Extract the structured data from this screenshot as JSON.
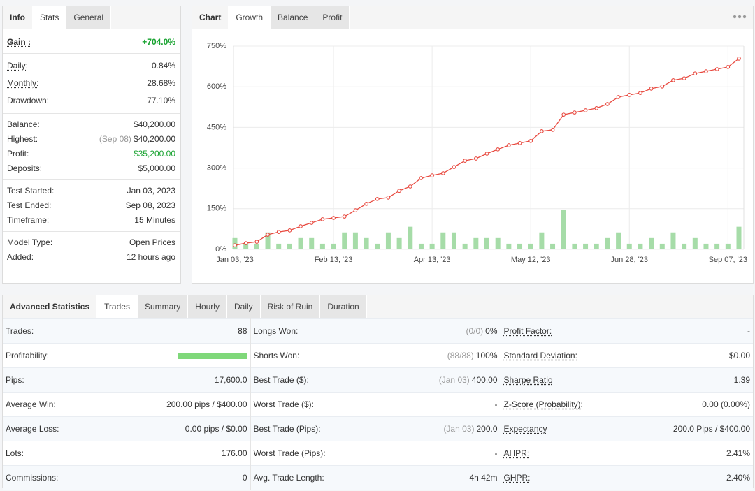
{
  "info_panel": {
    "tabs": [
      "Info",
      "Stats",
      "General"
    ],
    "groups": [
      [
        {
          "label": "Gain :",
          "value": "+704.0%"
        }
      ],
      [
        {
          "label": "Daily:",
          "value": "0.84%"
        },
        {
          "label": "Monthly:",
          "value": "28.68%"
        },
        {
          "label": "Drawdown:",
          "value": "77.10%"
        }
      ],
      [
        {
          "label": "Balance:",
          "value": "$40,200.00"
        },
        {
          "label": "Highest:",
          "note": "(Sep 08)",
          "value": "$40,200.00"
        },
        {
          "label": "Profit:",
          "value": "$35,200.00"
        },
        {
          "label": "Deposits:",
          "value": "$5,000.00"
        }
      ],
      [
        {
          "label": "Test Started:",
          "value": "Jan 03, 2023"
        },
        {
          "label": "Test Ended:",
          "value": "Sep 08, 2023"
        },
        {
          "label": "Timeframe:",
          "value": "15 Minutes"
        }
      ],
      [
        {
          "label": "Model Type:",
          "value": "Open Prices"
        },
        {
          "label": "Added:",
          "value": "12 hours ago"
        }
      ]
    ]
  },
  "chart_panel": {
    "tabs": [
      "Chart",
      "Growth",
      "Balance",
      "Profit"
    ]
  },
  "chart_data": {
    "type": "line",
    "categories": [
      "Jan 03, '23",
      null,
      null,
      null,
      null,
      null,
      null,
      null,
      null,
      "Feb 13, '23",
      null,
      null,
      null,
      null,
      null,
      null,
      null,
      null,
      "Apr 13, '23",
      null,
      null,
      null,
      null,
      null,
      null,
      null,
      null,
      "May 12, '23",
      null,
      null,
      null,
      null,
      null,
      null,
      null,
      null,
      "Jun 28, '23",
      null,
      null,
      null,
      null,
      null,
      null,
      null,
      null,
      "Sep 07, '23",
      null
    ],
    "series": [
      {
        "type": "bar",
        "axis": "y2",
        "color": "#a6dca8",
        "values": [
          2,
          1,
          1,
          3,
          1,
          1,
          2,
          2,
          1,
          1,
          3,
          3,
          2,
          1,
          3,
          2,
          4,
          1,
          1,
          3,
          3,
          1,
          2,
          2,
          2,
          1,
          1,
          1,
          3,
          1,
          7,
          1,
          1,
          1,
          2,
          3,
          1,
          1,
          2,
          1,
          3,
          1,
          2,
          1,
          1,
          1,
          4
        ]
      },
      {
        "color": "#e8493f",
        "values": [
          15,
          23,
          28,
          54,
          64,
          70,
          85,
          98,
          111,
          116,
          121,
          144,
          168,
          186,
          191,
          216,
          232,
          263,
          273,
          281,
          304,
          327,
          335,
          353,
          369,
          384,
          392,
          400,
          436,
          441,
          497,
          505,
          513,
          521,
          536,
          562,
          570,
          577,
          593,
          601,
          624,
          631,
          649,
          657,
          665,
          673,
          704
        ]
      }
    ],
    "ylim": [
      0,
      750
    ],
    "yticks": [
      {
        "value": 0,
        "label": "0%"
      },
      {
        "value": 150,
        "label": "150%"
      },
      {
        "value": 300,
        "label": "300%"
      },
      {
        "value": 450,
        "label": "450%"
      },
      {
        "value": 600,
        "label": "600%"
      },
      {
        "value": 750,
        "label": "750%"
      }
    ],
    "y2lim": [
      0,
      36
    ],
    "grid": true
  },
  "stats_panel": {
    "tabs": [
      "Advanced Statistics",
      "Trades",
      "Summary",
      "Hourly",
      "Daily",
      "Risk of Ruin",
      "Duration"
    ],
    "rows": [
      [
        {
          "label": "Trades:",
          "value": "88"
        },
        {
          "label": "Longs Won:",
          "note": "(0/0)",
          "value": "0%"
        },
        {
          "label": "Profit Factor:",
          "value": "-"
        }
      ],
      [
        {
          "label": "Profitability:",
          "bar": 100
        },
        {
          "label": "Shorts Won:",
          "note": "(88/88)",
          "value": "100%"
        },
        {
          "label": "Standard Deviation:",
          "value": "$0.00"
        }
      ],
      [
        {
          "label": "Pips:",
          "value": "17,600.0"
        },
        {
          "label": "Best Trade ($):",
          "note": "(Jan 03)",
          "value": "400.00"
        },
        {
          "label": "Sharpe Ratio",
          "value": "1.39"
        }
      ],
      [
        {
          "label": "Average Win:",
          "value": "200.00 pips / $400.00"
        },
        {
          "label": "Worst Trade ($):",
          "value": "-"
        },
        {
          "label": "Z-Score (Probability):",
          "value": "0.00 (0.00%)"
        }
      ],
      [
        {
          "label": "Average Loss:",
          "value": "0.00 pips / $0.00"
        },
        {
          "label": "Best Trade (Pips):",
          "note": "(Jan 03)",
          "value": "200.0"
        },
        {
          "label": "Expectancy",
          "value": "200.0 Pips / $400.00"
        }
      ],
      [
        {
          "label": "Lots:",
          "value": "176.00"
        },
        {
          "label": "Worst Trade (Pips):",
          "value": "-"
        },
        {
          "label": "AHPR:",
          "value": "2.41%"
        }
      ],
      [
        {
          "label": "Commissions:",
          "value": "0"
        },
        {
          "label": "Avg. Trade Length:",
          "value": "4h 42m"
        },
        {
          "label": "GHPR:",
          "value": "2.40%"
        }
      ]
    ]
  }
}
